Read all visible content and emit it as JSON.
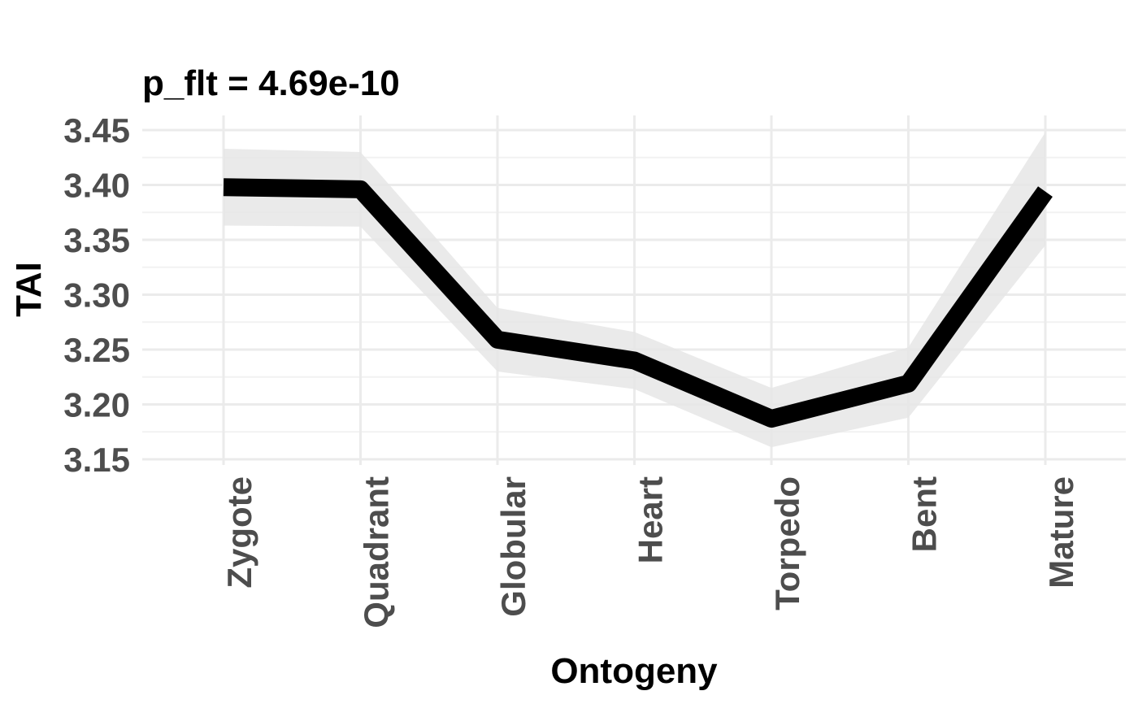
{
  "chart_data": {
    "type": "line",
    "title": "p_flt = 4.69e-10",
    "xlabel": "Ontogeny",
    "ylabel": "TAI",
    "categories": [
      "Zygote",
      "Quadrant",
      "Globular",
      "Heart",
      "Torpedo",
      "Bent",
      "Mature"
    ],
    "series": [
      {
        "values": [
          3.398,
          3.396,
          3.259,
          3.24,
          3.187,
          3.219,
          3.394
        ],
        "ribbon_lower": [
          3.363,
          3.362,
          3.23,
          3.214,
          3.161,
          3.188,
          3.345
        ],
        "ribbon_upper": [
          3.433,
          3.43,
          3.288,
          3.266,
          3.215,
          3.252,
          3.448
        ],
        "color": "#000000",
        "ribbon_color": "#e6e6e6"
      }
    ],
    "yticks": [
      "3.15",
      "3.20",
      "3.25",
      "3.30",
      "3.35",
      "3.40",
      "3.45"
    ],
    "ylim": [
      3.15,
      3.45
    ],
    "grid": true,
    "legend": "none"
  }
}
